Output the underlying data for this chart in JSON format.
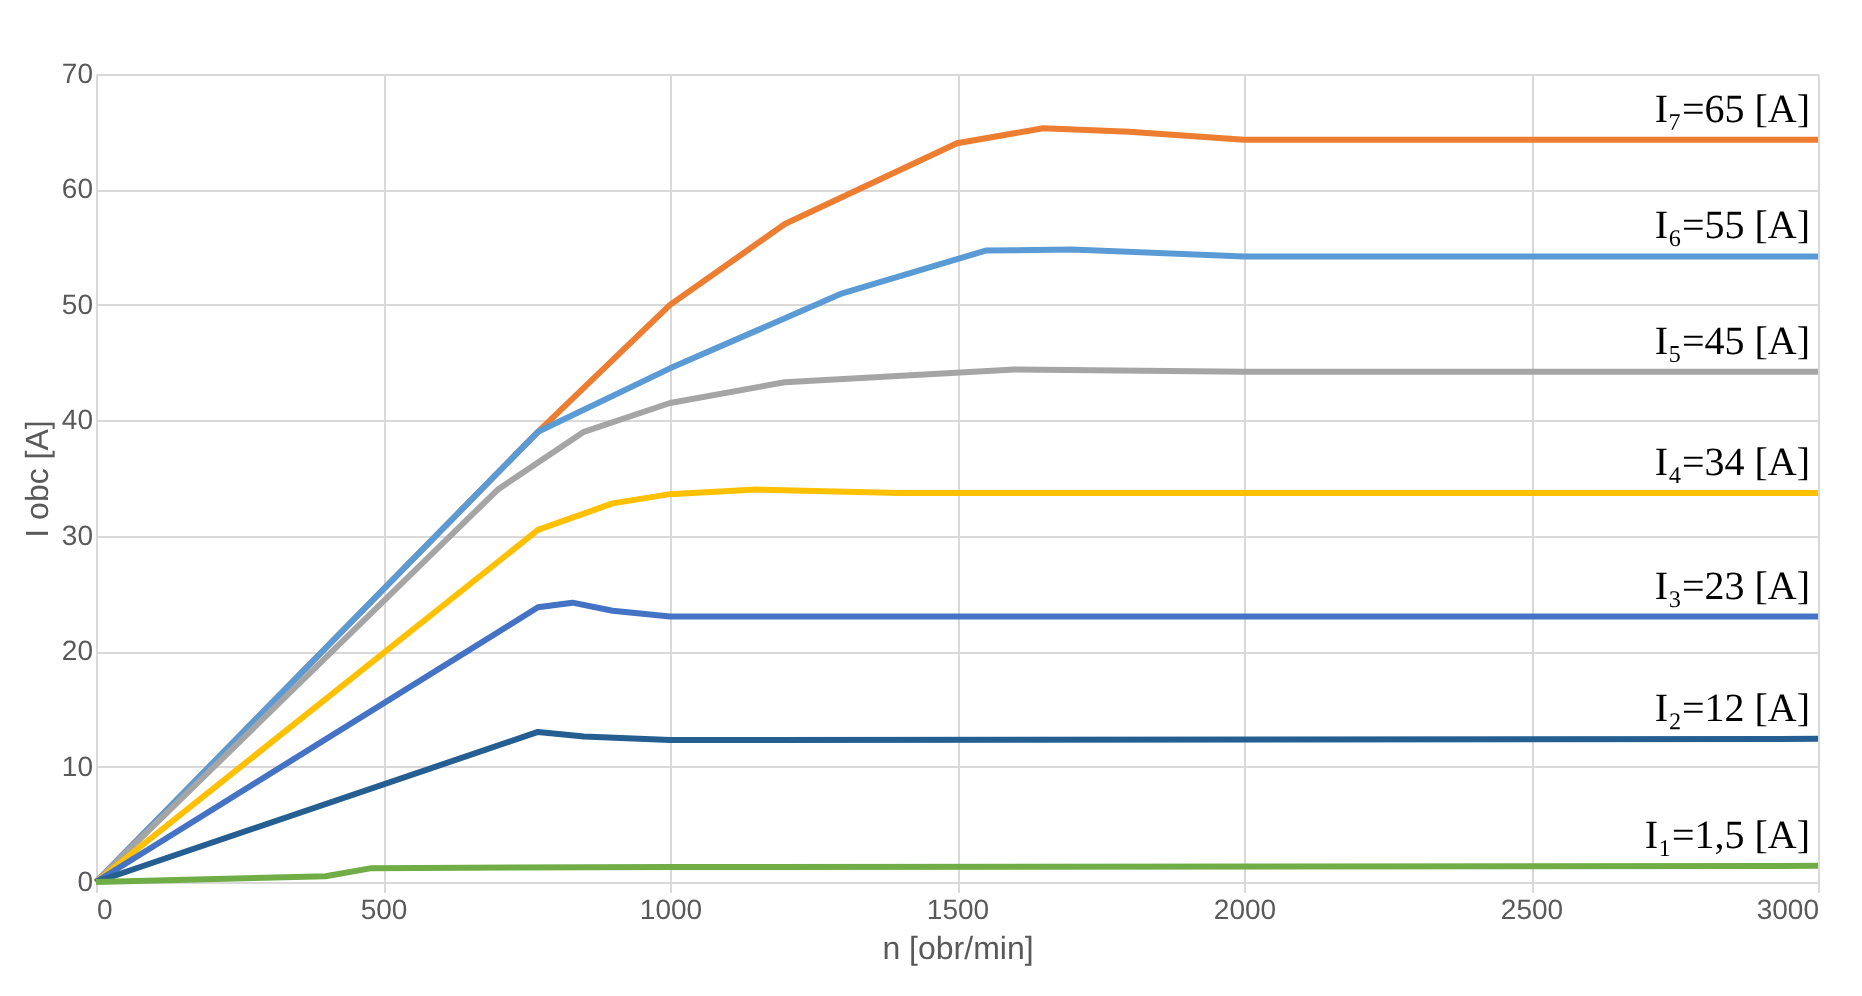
{
  "chart_data": {
    "type": "line",
    "xlabel": "n [obr/min]",
    "ylabel": "I obc [A]",
    "xlim": [
      0,
      3000
    ],
    "xticks": [
      0,
      500,
      1000,
      1500,
      2000,
      2500,
      3000
    ],
    "ylim": [
      0,
      70
    ],
    "yticks": [
      0,
      10,
      20,
      30,
      40,
      50,
      60,
      70
    ],
    "grid": true,
    "marker": "none",
    "line_style": "solid",
    "series": [
      {
        "name": "I₇=65 [A]",
        "color": "#ed7d31",
        "x": [
          0,
          770,
          1000,
          1200,
          1500,
          1650,
          1800,
          2000,
          3000
        ],
        "values": [
          0,
          39,
          50,
          57,
          64,
          65.3,
          65,
          64.3,
          64.3
        ]
      },
      {
        "name": "I₆=55 [A]",
        "color": "#5b9bd5",
        "x": [
          0,
          770,
          1000,
          1300,
          1550,
          1700,
          2000,
          3000
        ],
        "values": [
          0,
          39,
          44.5,
          51,
          54.7,
          54.8,
          54.2,
          54.2
        ]
      },
      {
        "name": "I₅=45 [A]",
        "color": "#a5a5a5",
        "x": [
          0,
          700,
          850,
          1000,
          1200,
          1600,
          2000,
          3000
        ],
        "values": [
          0,
          34,
          39,
          41.5,
          43.3,
          44.4,
          44.2,
          44.2
        ]
      },
      {
        "name": "I₄=34 [A]",
        "color": "#ffc000",
        "x": [
          0,
          770,
          900,
          1000,
          1150,
          1400,
          3000
        ],
        "values": [
          0,
          30.5,
          32.8,
          33.6,
          34,
          33.7,
          33.7
        ]
      },
      {
        "name": "I₃=23 [A]",
        "color": "#4472c4",
        "x": [
          0,
          770,
          830,
          900,
          1000,
          2000,
          3000
        ],
        "values": [
          0,
          23.8,
          24.2,
          23.5,
          23,
          23,
          23
        ]
      },
      {
        "name": "I₂=12 [A]",
        "color": "#255e91",
        "x": [
          0,
          770,
          850,
          1000,
          3000
        ],
        "values": [
          0,
          13,
          12.6,
          12.3,
          12.4
        ]
      },
      {
        "name": "I₁=1,5 [A]",
        "color": "#70ad47",
        "x": [
          0,
          400,
          480,
          1000,
          3000
        ],
        "values": [
          0,
          0.5,
          1.2,
          1.3,
          1.4
        ]
      }
    ]
  }
}
